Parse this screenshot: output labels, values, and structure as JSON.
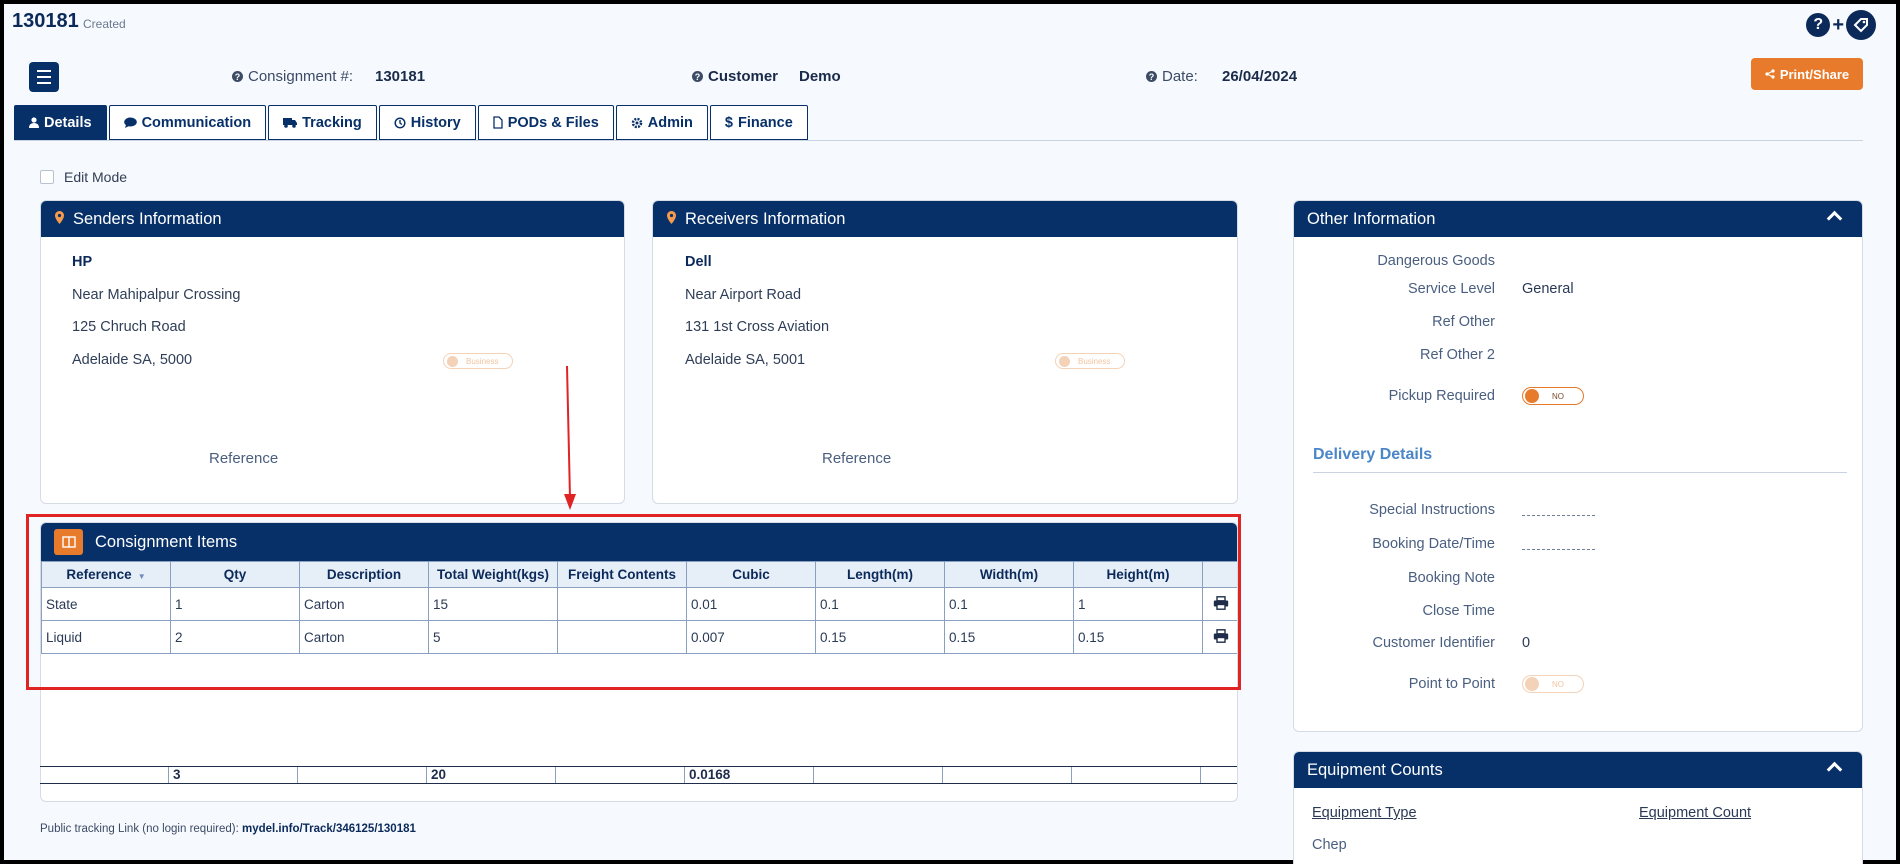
{
  "header": {
    "consignment_id": "130181",
    "status": "Created",
    "consignment_label": "Consignment #:",
    "consignment_value": "130181",
    "customer_label": "Customer",
    "customer_value": "Demo",
    "date_label": "Date:",
    "date_value": "26/04/2024",
    "print_share_label": "Print/Share"
  },
  "tabs": [
    {
      "label": "Details",
      "icon": "user-icon"
    },
    {
      "label": "Communication",
      "icon": "comment-icon"
    },
    {
      "label": "Tracking",
      "icon": "truck-icon"
    },
    {
      "label": "History",
      "icon": "history-icon"
    },
    {
      "label": "PODs & Files",
      "icon": "file-icon"
    },
    {
      "label": "Admin",
      "icon": "gear-icon"
    },
    {
      "label": "Finance",
      "icon": "dollar-icon"
    }
  ],
  "edit_mode_label": "Edit Mode",
  "senders": {
    "title": "Senders Information",
    "name": "HP",
    "line1": "Near Mahipalpur Crossing",
    "line2": "125 Chruch Road",
    "line3": "Adelaide SA, 5000",
    "toggle_text": "Business",
    "reference_label": "Reference"
  },
  "receivers": {
    "title": "Receivers Information",
    "name": "Dell",
    "line1": "Near Airport Road",
    "line2": "131 1st Cross Aviation",
    "line3": "Adelaide SA, 5001",
    "toggle_text": "Business",
    "reference_label": "Reference"
  },
  "items": {
    "title": "Consignment Items",
    "columns": [
      "Reference",
      "Qty",
      "Description",
      "Total Weight(kgs)",
      "Freight Contents",
      "Cubic",
      "Length(m)",
      "Width(m)",
      "Height(m)"
    ],
    "rows": [
      {
        "reference": "State",
        "qty": "1",
        "description": "Carton",
        "weight": "15",
        "freight": "",
        "cubic": "0.01",
        "length": "0.1",
        "width": "0.1",
        "height": "1"
      },
      {
        "reference": "Liquid",
        "qty": "2",
        "description": "Carton",
        "weight": "5",
        "freight": "",
        "cubic": "0.007",
        "length": "0.15",
        "width": "0.15",
        "height": "0.15"
      }
    ],
    "totals": {
      "qty": "3",
      "weight": "20",
      "cubic": "0.0168"
    }
  },
  "public_link": {
    "label": "Public tracking Link (no login required):",
    "url": "mydel.info/Track/346125/130181"
  },
  "other_info": {
    "title": "Other Information",
    "dangerous_goods_label": "Dangerous Goods",
    "service_level_label": "Service Level",
    "service_level_value": "General",
    "ref_other_label": "Ref Other",
    "ref_other2_label": "Ref Other 2",
    "pickup_required_label": "Pickup Required",
    "pickup_toggle_text": "NO",
    "delivery_details_title": "Delivery Details",
    "special_instructions_label": "Special Instructions",
    "booking_datetime_label": "Booking Date/Time",
    "booking_note_label": "Booking Note",
    "close_time_label": "Close Time",
    "customer_identifier_label": "Customer Identifier",
    "customer_identifier_value": "0",
    "point_to_point_label": "Point to Point",
    "point_toggle_text": "NO"
  },
  "equipment": {
    "title": "Equipment Counts",
    "type_header": "Equipment Type",
    "count_header": "Equipment Count",
    "row1_type": "Chep"
  },
  "colors": {
    "navy": "#073069",
    "orange": "#e87a2b",
    "annotation_red": "#e02424"
  }
}
